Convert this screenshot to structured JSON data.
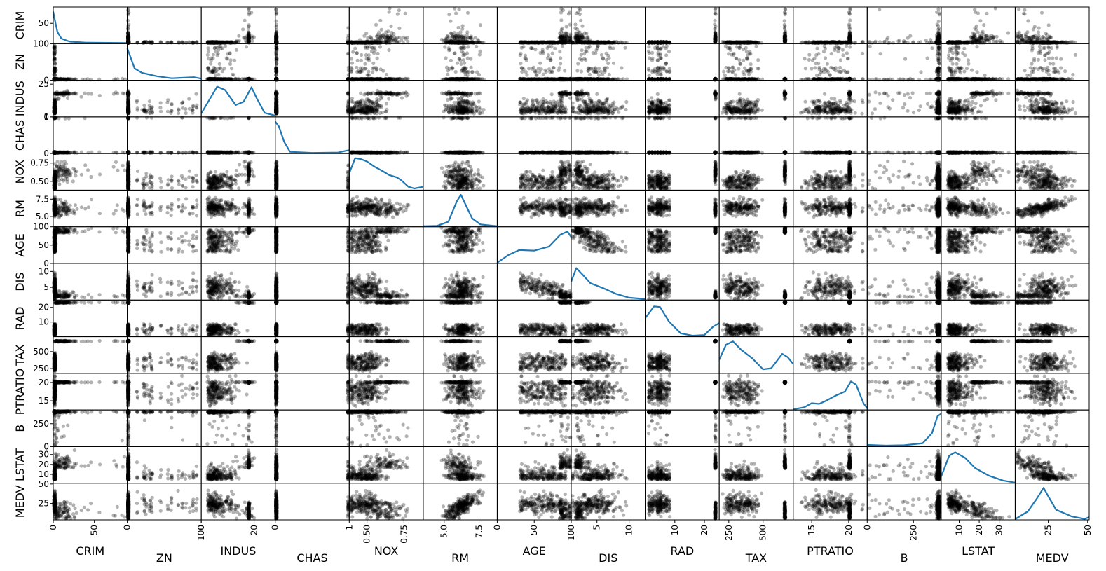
{
  "chart_data": {
    "type": "scatter",
    "subtype": "scatter-matrix",
    "variables": [
      "CRIM",
      "ZN",
      "INDUS",
      "CHAS",
      "NOX",
      "RM",
      "AGE",
      "DIS",
      "RAD",
      "TAX",
      "PTRATIO",
      "B",
      "LSTAT",
      "MEDV"
    ],
    "diagonal": "kde",
    "point_color": "#000000",
    "point_alpha": 0.3,
    "kde_color": "#1f77b4",
    "x_ranges": {
      "CRIM": [
        0,
        90
      ],
      "ZN": [
        0,
        100
      ],
      "INDUS": [
        0,
        28
      ],
      "CHAS": [
        0,
        1
      ],
      "NOX": [
        0.38,
        0.88
      ],
      "RM": [
        3.5,
        8.8
      ],
      "AGE": [
        0,
        100
      ],
      "DIS": [
        1,
        12.5
      ],
      "RAD": [
        0,
        25
      ],
      "TAX": [
        180,
        720
      ],
      "PTRATIO": [
        12.5,
        22.5
      ],
      "B": [
        0,
        400
      ],
      "LSTAT": [
        1,
        38
      ],
      "MEDV": [
        4,
        51
      ]
    },
    "y_ranges": {
      "CRIM": [
        0,
        90
      ],
      "ZN": [
        0,
        100
      ],
      "INDUS": [
        0,
        28
      ],
      "CHAS": [
        0,
        1
      ],
      "NOX": [
        0.38,
        0.88
      ],
      "RM": [
        3.5,
        8.8
      ],
      "AGE": [
        0,
        100
      ],
      "DIS": [
        1,
        12.5
      ],
      "RAD": [
        0,
        25
      ],
      "TAX": [
        180,
        720
      ],
      "PTRATIO": [
        12.5,
        22.5
      ],
      "B": [
        0,
        400
      ],
      "LSTAT": [
        1,
        38
      ],
      "MEDV": [
        4,
        51
      ]
    },
    "x_ticks": {
      "CRIM": [
        "0",
        "50"
      ],
      "ZN": [
        "0",
        "100"
      ],
      "INDUS": [
        "0",
        "20"
      ],
      "CHAS": [
        "0",
        "1"
      ],
      "NOX": [
        "0.50",
        "0.75"
      ],
      "RM": [
        "5.0",
        "7.5"
      ],
      "AGE": [
        "0",
        "50",
        "100"
      ],
      "DIS": [
        "5",
        "10"
      ],
      "RAD": [
        "10",
        "20"
      ],
      "TAX": [
        "250",
        "500"
      ],
      "PTRATIO": [
        "15",
        "20"
      ],
      "B": [
        "0",
        "250"
      ],
      "LSTAT": [
        "10",
        "20",
        "30"
      ],
      "MEDV": [
        "25",
        "50"
      ]
    },
    "x_tick_values": {
      "CRIM": [
        0,
        50
      ],
      "ZN": [
        0,
        100
      ],
      "INDUS": [
        0,
        20
      ],
      "CHAS": [
        0,
        1
      ],
      "NOX": [
        0.5,
        0.75
      ],
      "RM": [
        5,
        7.5
      ],
      "AGE": [
        0,
        50,
        100
      ],
      "DIS": [
        5,
        10
      ],
      "RAD": [
        10,
        20
      ],
      "TAX": [
        250,
        500
      ],
      "PTRATIO": [
        15,
        20
      ],
      "B": [
        0,
        250
      ],
      "LSTAT": [
        10,
        20,
        30
      ],
      "MEDV": [
        25,
        50
      ]
    },
    "y_ticks": {
      "CRIM": [
        "0",
        "50"
      ],
      "ZN": [
        "0",
        "100"
      ],
      "INDUS": [
        "0",
        "25"
      ],
      "CHAS": [
        "0",
        "1"
      ],
      "NOX": [
        "0.50",
        "0.75"
      ],
      "RM": [
        "5.0",
        "7.5"
      ],
      "AGE": [
        "0",
        "50",
        "100"
      ],
      "DIS": [
        "5",
        "10"
      ],
      "RAD": [
        "10",
        "20"
      ],
      "TAX": [
        "250",
        "500"
      ],
      "PTRATIO": [
        "15",
        "20"
      ],
      "B": [
        "0",
        "250"
      ],
      "LSTAT": [
        "10",
        "20",
        "30"
      ],
      "MEDV": [
        "25",
        "50"
      ]
    },
    "y_tick_values": {
      "CRIM": [
        0,
        50
      ],
      "ZN": [
        0,
        100
      ],
      "INDUS": [
        0,
        25
      ],
      "CHAS": [
        0,
        1
      ],
      "NOX": [
        0.5,
        0.75
      ],
      "RM": [
        5,
        7.5
      ],
      "AGE": [
        0,
        50,
        100
      ],
      "DIS": [
        5,
        10
      ],
      "RAD": [
        10,
        20
      ],
      "TAX": [
        250,
        500
      ],
      "PTRATIO": [
        15,
        20
      ],
      "B": [
        0,
        250
      ],
      "LSTAT": [
        10,
        20,
        30
      ],
      "MEDV": [
        25,
        50
      ]
    },
    "kde_curves": {
      "CRIM": [
        [
          0,
          0.95
        ],
        [
          2,
          0.7
        ],
        [
          5,
          0.35
        ],
        [
          10,
          0.15
        ],
        [
          20,
          0.06
        ],
        [
          40,
          0.03
        ],
        [
          90,
          0.02
        ]
      ],
      "ZN": [
        [
          0,
          0.95
        ],
        [
          10,
          0.35
        ],
        [
          20,
          0.22
        ],
        [
          40,
          0.12
        ],
        [
          60,
          0.06
        ],
        [
          80,
          0.08
        ],
        [
          90,
          0.09
        ],
        [
          100,
          0.05
        ]
      ],
      "INDUS": [
        [
          0,
          0.1
        ],
        [
          3,
          0.5
        ],
        [
          6,
          0.9
        ],
        [
          9,
          0.8
        ],
        [
          13,
          0.35
        ],
        [
          16,
          0.45
        ],
        [
          19,
          0.88
        ],
        [
          21,
          0.55
        ],
        [
          24,
          0.12
        ],
        [
          28,
          0.04
        ]
      ],
      "CHAS": [
        [
          0,
          0.95
        ],
        [
          0.05,
          0.8
        ],
        [
          0.12,
          0.35
        ],
        [
          0.2,
          0.05
        ],
        [
          0.5,
          0.02
        ],
        [
          0.85,
          0.03
        ],
        [
          0.95,
          0.08
        ],
        [
          1,
          0.1
        ]
      ],
      "NOX": [
        [
          0.38,
          0.5
        ],
        [
          0.42,
          0.95
        ],
        [
          0.46,
          0.92
        ],
        [
          0.5,
          0.85
        ],
        [
          0.55,
          0.7
        ],
        [
          0.6,
          0.58
        ],
        [
          0.65,
          0.45
        ],
        [
          0.7,
          0.38
        ],
        [
          0.73,
          0.3
        ],
        [
          0.78,
          0.1
        ],
        [
          0.82,
          0.05
        ],
        [
          0.88,
          0.1
        ]
      ],
      "RM": [
        [
          3.5,
          0.02
        ],
        [
          4.5,
          0.03
        ],
        [
          5.3,
          0.15
        ],
        [
          5.9,
          0.75
        ],
        [
          6.2,
          0.95
        ],
        [
          6.6,
          0.6
        ],
        [
          7.0,
          0.25
        ],
        [
          7.6,
          0.07
        ],
        [
          8.8,
          0.02
        ]
      ],
      "AGE": [
        [
          0,
          0.02
        ],
        [
          15,
          0.25
        ],
        [
          30,
          0.4
        ],
        [
          50,
          0.38
        ],
        [
          70,
          0.5
        ],
        [
          85,
          0.85
        ],
        [
          95,
          0.95
        ],
        [
          100,
          0.78
        ]
      ],
      "DIS": [
        [
          1,
          0.55
        ],
        [
          1.8,
          0.95
        ],
        [
          2.8,
          0.75
        ],
        [
          4,
          0.5
        ],
        [
          6,
          0.35
        ],
        [
          8,
          0.18
        ],
        [
          10,
          0.07
        ],
        [
          12.5,
          0.03
        ]
      ],
      "RAD": [
        [
          0,
          0.55
        ],
        [
          3,
          0.9
        ],
        [
          5,
          0.88
        ],
        [
          8,
          0.45
        ],
        [
          12,
          0.1
        ],
        [
          16,
          0.03
        ],
        [
          20,
          0.05
        ],
        [
          23,
          0.3
        ],
        [
          25,
          0.4
        ]
      ],
      "TAX": [
        [
          180,
          0.4
        ],
        [
          230,
          0.85
        ],
        [
          280,
          0.95
        ],
        [
          340,
          0.7
        ],
        [
          420,
          0.45
        ],
        [
          500,
          0.12
        ],
        [
          560,
          0.15
        ],
        [
          640,
          0.58
        ],
        [
          680,
          0.48
        ],
        [
          720,
          0.28
        ]
      ],
      "PTRATIO": [
        [
          12.5,
          0.02
        ],
        [
          14,
          0.08
        ],
        [
          15,
          0.2
        ],
        [
          16,
          0.18
        ],
        [
          17,
          0.28
        ],
        [
          18.2,
          0.42
        ],
        [
          19.5,
          0.55
        ],
        [
          20.3,
          0.85
        ],
        [
          21,
          0.75
        ],
        [
          22,
          0.2
        ],
        [
          22.5,
          0.05
        ]
      ],
      "B": [
        [
          0,
          0.05
        ],
        [
          100,
          0.03
        ],
        [
          200,
          0.04
        ],
        [
          300,
          0.1
        ],
        [
          350,
          0.4
        ],
        [
          380,
          0.9
        ],
        [
          400,
          0.98
        ]
      ],
      "LSTAT": [
        [
          1,
          0.2
        ],
        [
          5,
          0.82
        ],
        [
          8,
          0.92
        ],
        [
          13,
          0.75
        ],
        [
          18,
          0.45
        ],
        [
          25,
          0.22
        ],
        [
          32,
          0.08
        ],
        [
          38,
          0.02
        ]
      ],
      "MEDV": [
        [
          4,
          0.02
        ],
        [
          12,
          0.25
        ],
        [
          18,
          0.65
        ],
        [
          22,
          0.95
        ],
        [
          25,
          0.7
        ],
        [
          30,
          0.3
        ],
        [
          40,
          0.1
        ],
        [
          48,
          0.03
        ],
        [
          51,
          0.08
        ]
      ]
    }
  }
}
